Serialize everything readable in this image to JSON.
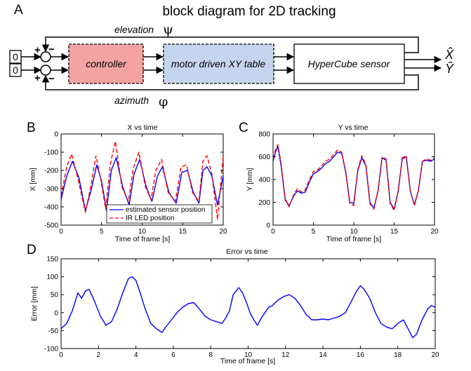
{
  "diagram": {
    "panel_letter": "A",
    "title": "block diagram for 2D tracking",
    "inputs": [
      "0",
      "0"
    ],
    "sum_top_plus": "+",
    "sum_top_minus": "−",
    "sum_bottom_plus": "+",
    "sum_bottom_minus": "−",
    "elevation_label": "elevation",
    "elevation_symbol": "ψ",
    "azimuth_label": "azimuth",
    "azimuth_symbol": "φ",
    "blocks": [
      "controller",
      "motor driven XY table",
      "HyperCube sensor"
    ],
    "outputs": [
      "X̂",
      "Ŷ"
    ],
    "colors": {
      "controller": "#f4a3a3",
      "motor": "#c5d5ee",
      "sensor": "#ffffff"
    }
  },
  "chart_data": [
    {
      "panel": "B",
      "type": "line",
      "title": "X vs time",
      "xlabel": "Time of frame [s]",
      "ylabel": "X [mm]",
      "xlim": [
        0,
        20
      ],
      "ylim": [
        -500,
        0
      ],
      "xticks": [
        0,
        5,
        10,
        15,
        20
      ],
      "yticks": [
        0,
        -100,
        -200,
        -300,
        -400,
        -500
      ],
      "grid": false,
      "legend": "bottom-center",
      "series": [
        {
          "name": "estimated sensor position",
          "color": "#0000ff",
          "dash": "solid",
          "x": [
            0,
            0.7,
            1.4,
            2.2,
            3.0,
            3.7,
            4.4,
            5.0,
            5.6,
            6.2,
            6.8,
            7.6,
            8.4,
            9.0,
            9.7,
            10.5,
            11.2,
            11.9,
            12.5,
            13.3,
            14.2,
            14.9,
            15.6,
            16.3,
            17.0,
            17.5,
            18.0,
            18.6,
            19.3,
            20.0
          ],
          "y": [
            -360,
            -230,
            -150,
            -240,
            -420,
            -310,
            -170,
            -260,
            -420,
            -200,
            -130,
            -290,
            -390,
            -220,
            -140,
            -290,
            -370,
            -230,
            -180,
            -320,
            -380,
            -210,
            -200,
            -320,
            -380,
            -200,
            -180,
            -230,
            -390,
            -230
          ]
        },
        {
          "name": "IR LED position",
          "color": "#ff0000",
          "dash": "dashed",
          "x": [
            0,
            0.7,
            1.3,
            2.1,
            3.0,
            3.7,
            4.3,
            4.9,
            5.5,
            6.1,
            6.7,
            7.5,
            8.3,
            8.9,
            9.6,
            10.4,
            11.1,
            11.7,
            12.4,
            13.2,
            14.1,
            14.8,
            15.5,
            16.2,
            17.0,
            17.5,
            18.0,
            18.6,
            19.3,
            20.0
          ],
          "y": [
            -340,
            -180,
            -110,
            -250,
            -430,
            -280,
            -120,
            -250,
            -410,
            -160,
            -40,
            -290,
            -370,
            -190,
            -100,
            -290,
            -360,
            -200,
            -140,
            -320,
            -370,
            -180,
            -170,
            -320,
            -370,
            -150,
            -120,
            -220,
            -470,
            -120
          ]
        }
      ]
    },
    {
      "panel": "C",
      "type": "line",
      "title": "Y vs time",
      "xlabel": "Time of frame [s]",
      "ylabel": "Y [mm]",
      "xlim": [
        0,
        20
      ],
      "ylim": [
        0,
        800
      ],
      "xticks": [
        0,
        5,
        10,
        15,
        20
      ],
      "yticks": [
        0,
        200,
        400,
        600,
        800
      ],
      "grid": false,
      "series": [
        {
          "name": "estimated sensor position",
          "color": "#0000ff",
          "dash": "solid",
          "x": [
            0,
            0.3,
            0.6,
            1.0,
            1.5,
            2.0,
            2.5,
            3.0,
            3.5,
            4.0,
            4.5,
            5.0,
            5.5,
            6.0,
            6.5,
            7.0,
            7.5,
            8.0,
            8.5,
            9.0,
            9.5,
            10.0,
            10.5,
            11.0,
            11.5,
            12.0,
            12.5,
            13.0,
            13.5,
            14.0,
            14.5,
            15.0,
            15.5,
            16.0,
            16.5,
            17.0,
            17.5,
            18.0,
            18.5,
            19.0,
            19.5,
            20.0
          ],
          "y": [
            560,
            640,
            690,
            520,
            220,
            170,
            250,
            300,
            280,
            290,
            380,
            450,
            470,
            500,
            540,
            560,
            600,
            640,
            630,
            470,
            200,
            190,
            480,
            590,
            520,
            200,
            150,
            300,
            590,
            570,
            200,
            140,
            300,
            580,
            600,
            300,
            180,
            300,
            560,
            570,
            560,
            580
          ]
        },
        {
          "name": "IR LED position",
          "color": "#ff0000",
          "dash": "dashed",
          "x": [
            0,
            0.3,
            0.6,
            1.0,
            1.5,
            2.0,
            2.5,
            3.0,
            3.5,
            4.0,
            4.5,
            5.0,
            5.5,
            6.0,
            6.5,
            7.0,
            7.5,
            8.0,
            8.5,
            9.0,
            9.5,
            10.0,
            10.5,
            11.0,
            11.5,
            12.0,
            12.5,
            13.0,
            13.5,
            14.0,
            14.5,
            15.0,
            15.5,
            16.0,
            16.5,
            17.0,
            17.5,
            18.0,
            18.5,
            19.0,
            19.5,
            20.0
          ],
          "y": [
            580,
            660,
            705,
            540,
            230,
            160,
            260,
            320,
            290,
            310,
            400,
            470,
            480,
            520,
            560,
            580,
            620,
            660,
            640,
            460,
            190,
            170,
            490,
            610,
            530,
            190,
            140,
            300,
            600,
            580,
            190,
            130,
            300,
            590,
            610,
            300,
            170,
            300,
            560,
            580,
            570,
            590
          ]
        }
      ]
    },
    {
      "panel": "D",
      "type": "line",
      "title": "Error vs time",
      "xlabel": "Time of frame [s]",
      "ylabel": "Error [mm]",
      "xlim": [
        0,
        20
      ],
      "ylim": [
        -100,
        150
      ],
      "xticks": [
        0,
        2,
        4,
        6,
        8,
        10,
        12,
        14,
        16,
        18,
        20
      ],
      "yticks": [
        150,
        100,
        50,
        0,
        -50,
        -100
      ],
      "grid": false,
      "series": [
        {
          "name": "",
          "color": "#0000ff",
          "dash": "solid",
          "x": [
            0,
            0.3,
            0.6,
            0.9,
            1.1,
            1.3,
            1.5,
            1.8,
            2.1,
            2.4,
            2.7,
            3.0,
            3.3,
            3.6,
            3.8,
            4.0,
            4.2,
            4.5,
            4.8,
            5.1,
            5.4,
            5.6,
            5.9,
            6.2,
            6.5,
            6.8,
            7.1,
            7.4,
            7.7,
            8.0,
            8.3,
            8.6,
            8.8,
            9.0,
            9.2,
            9.5,
            9.7,
            9.9,
            10.1,
            10.3,
            10.5,
            10.7,
            10.9,
            11.1,
            11.3,
            11.6,
            11.9,
            12.2,
            12.5,
            12.8,
            13.1,
            13.4,
            13.7,
            14.0,
            14.3,
            14.6,
            14.9,
            15.2,
            15.5,
            15.8,
            16.0,
            16.2,
            16.5,
            16.8,
            17.1,
            17.4,
            17.7,
            18.0,
            18.3,
            18.6,
            18.8,
            19.0,
            19.3,
            19.6,
            19.8,
            20.0
          ],
          "y": [
            -45,
            -30,
            5,
            55,
            40,
            60,
            65,
            30,
            -10,
            -35,
            -25,
            10,
            55,
            95,
            100,
            90,
            60,
            10,
            -30,
            -45,
            -55,
            -40,
            -20,
            0,
            15,
            25,
            28,
            10,
            -10,
            -20,
            -25,
            -30,
            -15,
            5,
            50,
            70,
            55,
            30,
            0,
            -20,
            -35,
            -15,
            0,
            15,
            20,
            35,
            45,
            50,
            40,
            20,
            -5,
            -20,
            -20,
            -18,
            -20,
            -15,
            -10,
            0,
            30,
            60,
            75,
            65,
            40,
            0,
            -30,
            -40,
            -45,
            -30,
            -20,
            -50,
            -70,
            -60,
            -20,
            10,
            20,
            15
          ]
        }
      ]
    }
  ]
}
